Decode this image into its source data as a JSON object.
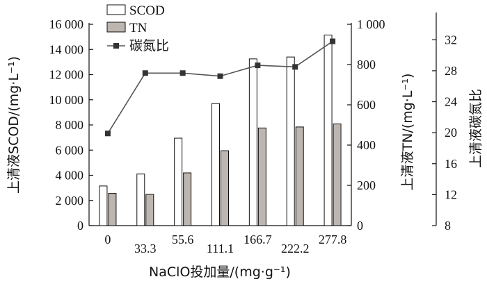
{
  "chart_data": {
    "type": "bar",
    "categories": [
      "0",
      "33.3",
      "55.6",
      "111.1",
      "166.7",
      "222.2",
      "277.8"
    ],
    "xlabel": "NaClO投加量/(mg·g⁻¹)",
    "left_axis": {
      "label": "上清液SCOD/(mg·L⁻¹)",
      "ylim": [
        0,
        16000
      ],
      "ticks": [
        0,
        2000,
        4000,
        6000,
        8000,
        10000,
        12000,
        14000,
        16000
      ],
      "tick_labels": [
        "0",
        "2 000",
        "4 000",
        "6 000",
        "8 000",
        "10 000",
        "12 000",
        "14 000",
        "16 000"
      ]
    },
    "right_axis_1": {
      "label": "上清液TN/(mg·L⁻¹)",
      "ylim": [
        0,
        1000
      ],
      "ticks": [
        0,
        200,
        400,
        600,
        800,
        1000
      ],
      "tick_labels": [
        "0",
        "200",
        "400",
        "600",
        "800",
        "1 000"
      ]
    },
    "right_axis_2": {
      "label": "上清液碳氮比",
      "ylim": [
        8,
        34
      ],
      "ticks": [
        8,
        12,
        16,
        20,
        24,
        28,
        32
      ],
      "tick_labels": [
        "8",
        "12",
        "16",
        "20",
        "24",
        "28",
        "32"
      ]
    },
    "series": [
      {
        "name": "SCOD",
        "kind": "bar",
        "axis": "left",
        "color": "#ffffff",
        "values": [
          3150,
          4100,
          6950,
          9700,
          13250,
          13400,
          15150
        ]
      },
      {
        "name": "TN",
        "kind": "bar",
        "axis": "right_1",
        "color": "#bdb6b0",
        "values": [
          160,
          155,
          262,
          372,
          485,
          490,
          505
        ]
      },
      {
        "name": "碳氮比",
        "kind": "line",
        "axis": "right_2",
        "color": "#555555",
        "values": [
          19.9,
          27.7,
          27.7,
          27.3,
          28.7,
          28.5,
          31.8
        ]
      }
    ],
    "legend_position": "top-left",
    "grid": false
  }
}
